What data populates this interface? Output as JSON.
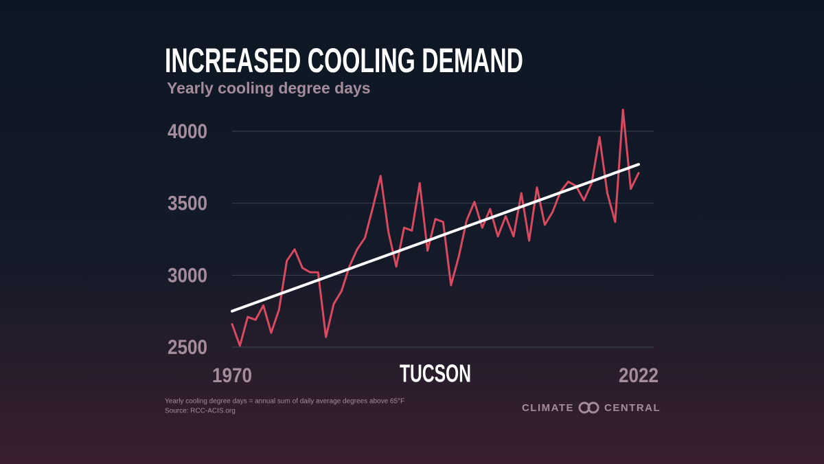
{
  "chart_data": {
    "type": "line",
    "title": "INCREASED COOLING DEMAND",
    "subtitle": "Yearly cooling degree days",
    "annotation": "TUCSON",
    "footnote": "Yearly cooling degree days = annual sum of daily average degrees above 65°F",
    "source": "Source: RCC-ACIS.org",
    "logo_left": "CLIMATE",
    "logo_right": "CENTRAL",
    "xlim": [
      1970,
      2022
    ],
    "xticks": [
      1970,
      2022
    ],
    "ylim": [
      2500,
      4200
    ],
    "yticks": [
      2500,
      3000,
      3500,
      4000
    ],
    "grid": true,
    "series": [
      {
        "color": "#d94a60",
        "x": [
          1970,
          1971,
          1972,
          1973,
          1974,
          1975,
          1976,
          1977,
          1978,
          1979,
          1980,
          1981,
          1982,
          1983,
          1984,
          1985,
          1986,
          1987,
          1988,
          1989,
          1990,
          1991,
          1992,
          1993,
          1994,
          1995,
          1996,
          1997,
          1998,
          1999,
          2000,
          2001,
          2002,
          2003,
          2004,
          2005,
          2006,
          2007,
          2008,
          2009,
          2010,
          2011,
          2012,
          2013,
          2014,
          2015,
          2016,
          2017,
          2018,
          2019,
          2020,
          2021,
          2022
        ],
        "values": [
          2660,
          2510,
          2710,
          2690,
          2790,
          2600,
          2760,
          3100,
          3180,
          3050,
          3020,
          3020,
          2570,
          2800,
          2890,
          3060,
          3180,
          3260,
          3470,
          3690,
          3300,
          3060,
          3330,
          3310,
          3640,
          3170,
          3390,
          3370,
          2930,
          3130,
          3380,
          3510,
          3330,
          3460,
          3270,
          3410,
          3270,
          3570,
          3240,
          3610,
          3350,
          3440,
          3580,
          3650,
          3620,
          3520,
          3640,
          3960,
          3570,
          3370,
          4150,
          3600,
          3710
        ]
      },
      {
        "color": "#ffffff",
        "x": [
          1970,
          2022
        ],
        "values": [
          2750,
          3770
        ]
      }
    ]
  }
}
